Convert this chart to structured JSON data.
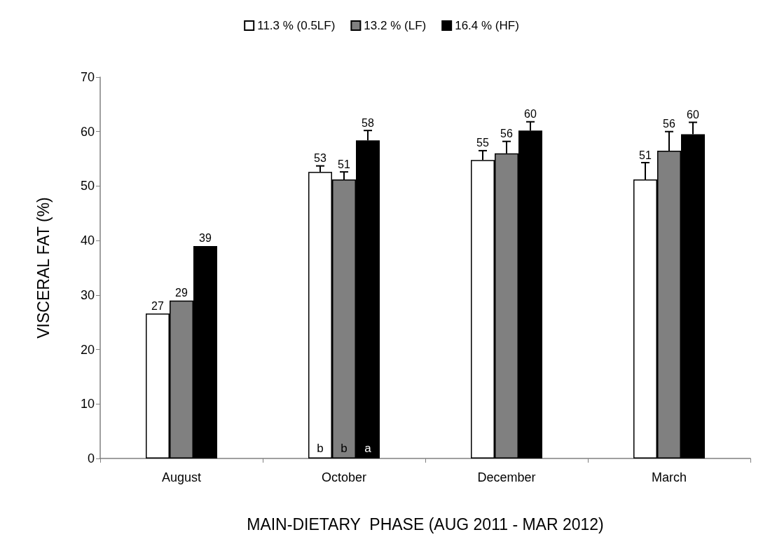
{
  "chart_data": {
    "type": "bar",
    "xlabel": "MAIN-DIETARY  PHASE (AUG 2011 - MAR 2012)",
    "ylabel": "VISCERAL FAT (%)",
    "categories": [
      "August",
      "October",
      "December",
      "March"
    ],
    "series": [
      {
        "name": "11.3 % (0.5LF)",
        "color": "#ffffff",
        "values": [
          26.6,
          52.6,
          54.8,
          51.2
        ],
        "value_labels": [
          "27",
          "53",
          "55",
          "51"
        ],
        "errors": [
          null,
          [
            52.6,
            53.7
          ],
          [
            54.8,
            56.5
          ],
          [
            51.2,
            54.3
          ]
        ]
      },
      {
        "name": "13.2 % (LF)",
        "color": "#808080",
        "values": [
          29,
          51.2,
          56,
          56.5
        ],
        "value_labels": [
          "29",
          "51",
          "56",
          "56"
        ],
        "errors": [
          null,
          [
            51.2,
            52.6
          ],
          [
            56,
            58.2
          ],
          [
            56.5,
            60
          ]
        ]
      },
      {
        "name": "16.4 % (HF)",
        "color": "#000000",
        "values": [
          39,
          58.4,
          60.2,
          59.5
        ],
        "value_labels": [
          "39",
          "58",
          "60",
          "60"
        ],
        "errors": [
          null,
          [
            58.4,
            60.2
          ],
          [
            60.2,
            61.8
          ],
          [
            59.5,
            61.7
          ]
        ]
      }
    ],
    "annotations": [
      {
        "text": "b",
        "x": "October",
        "y": 0
      },
      {
        "text": "b",
        "x": "October",
        "y": 0
      },
      {
        "text": "a",
        "x": "October",
        "y": 0
      }
    ],
    "ylim": [
      0,
      70
    ],
    "yticks": [
      0,
      10,
      20,
      30,
      40,
      50,
      60,
      70
    ],
    "grid": false,
    "legend": "top"
  }
}
